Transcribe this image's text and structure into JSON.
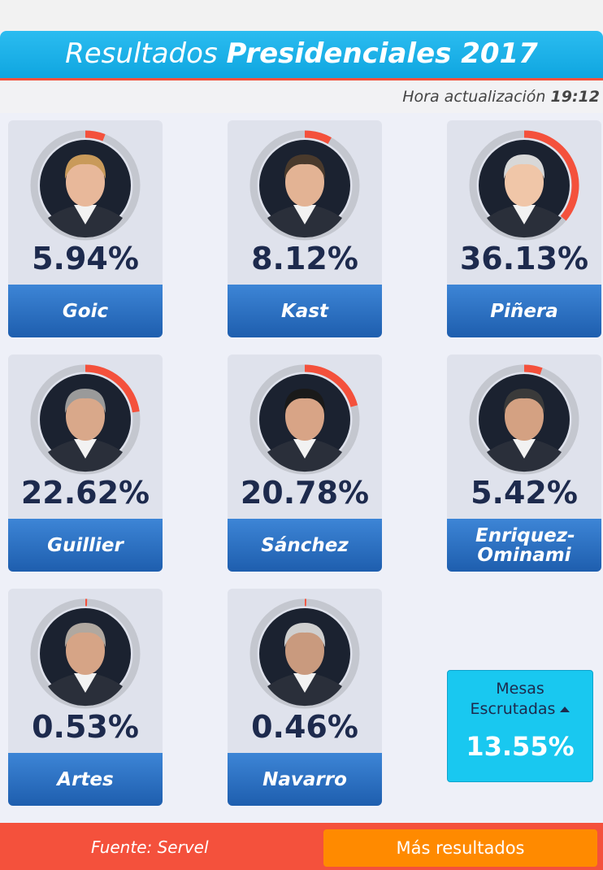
{
  "header": {
    "title_prefix": "Resultados",
    "title_emphasis": "Presidenciales 2017",
    "update_label": "Hora actualización",
    "update_time": "19:12"
  },
  "candidates": [
    {
      "name": "Goic",
      "value": 5.94,
      "label": "5.94%"
    },
    {
      "name": "Kast",
      "value": 8.12,
      "label": "8.12%"
    },
    {
      "name": "Piñera",
      "value": 36.13,
      "label": "36.13%"
    },
    {
      "name": "Guillier",
      "value": 22.62,
      "label": "22.62%"
    },
    {
      "name": "Sánchez",
      "value": 20.78,
      "label": "20.78%"
    },
    {
      "name": "Enriquez-Ominami",
      "value": 5.42,
      "label": "5.42%"
    },
    {
      "name": "Artes",
      "value": 0.53,
      "label": "0.53%"
    },
    {
      "name": "Navarro",
      "value": 0.46,
      "label": "0.46%"
    }
  ],
  "counted": {
    "title": "Mesas Escrutadas",
    "value": 13.55,
    "label": "13.55%"
  },
  "footer": {
    "source": "Fuente: Servel",
    "button": "Más resultados"
  }
}
